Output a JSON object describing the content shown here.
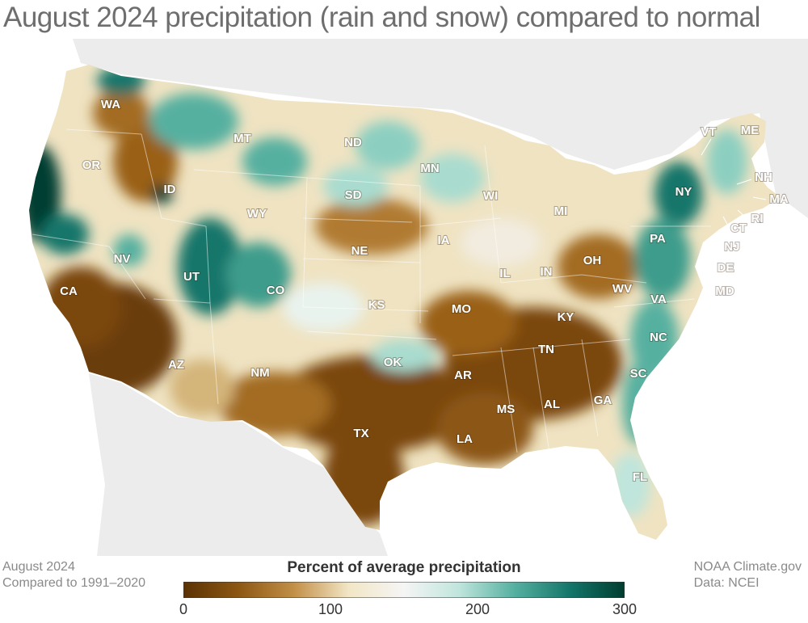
{
  "title": "August 2024 precipitation (rain and snow) compared to normal",
  "footer_left": {
    "line1": "August 2024",
    "line2": "Compared to 1991–2020"
  },
  "footer_right": {
    "line1": "NOAA Climate.gov",
    "line2": "Data: NCEI"
  },
  "legend": {
    "title": "Percent of average precipitation",
    "ticks": [
      "0",
      "100",
      "200",
      "300"
    ],
    "colors": [
      "#5b3204",
      "#8c5713",
      "#c28f47",
      "#f2e6c6",
      "#f5f5f5",
      "#bfe5dc",
      "#56b0a0",
      "#14766a",
      "#003c30"
    ]
  },
  "states": {
    "WA": "WA",
    "OR": "OR",
    "CA": "CA",
    "ID": "ID",
    "NV": "NV",
    "MT": "MT",
    "WY": "WY",
    "UT": "UT",
    "AZ": "AZ",
    "CO": "CO",
    "NM": "NM",
    "ND": "ND",
    "SD": "SD",
    "NE": "NE",
    "KS": "KS",
    "OK": "OK",
    "TX": "TX",
    "MN": "MN",
    "IA": "IA",
    "MO": "MO",
    "AR": "AR",
    "LA": "LA",
    "WI": "WI",
    "IL": "IL",
    "MI": "MI",
    "IN": "IN",
    "OH": "OH",
    "KY": "KY",
    "TN": "TN",
    "MS": "MS",
    "AL": "AL",
    "GA": "GA",
    "FL": "FL",
    "SC": "SC",
    "NC": "NC",
    "VA": "VA",
    "WV": "WV",
    "PA": "PA",
    "NY": "NY",
    "VT": "VT",
    "ME": "ME",
    "NH": "NH",
    "MA": "MA",
    "CT": "CT",
    "RI": "RI",
    "NJ": "NJ",
    "DE": "DE",
    "MD": "MD"
  }
}
